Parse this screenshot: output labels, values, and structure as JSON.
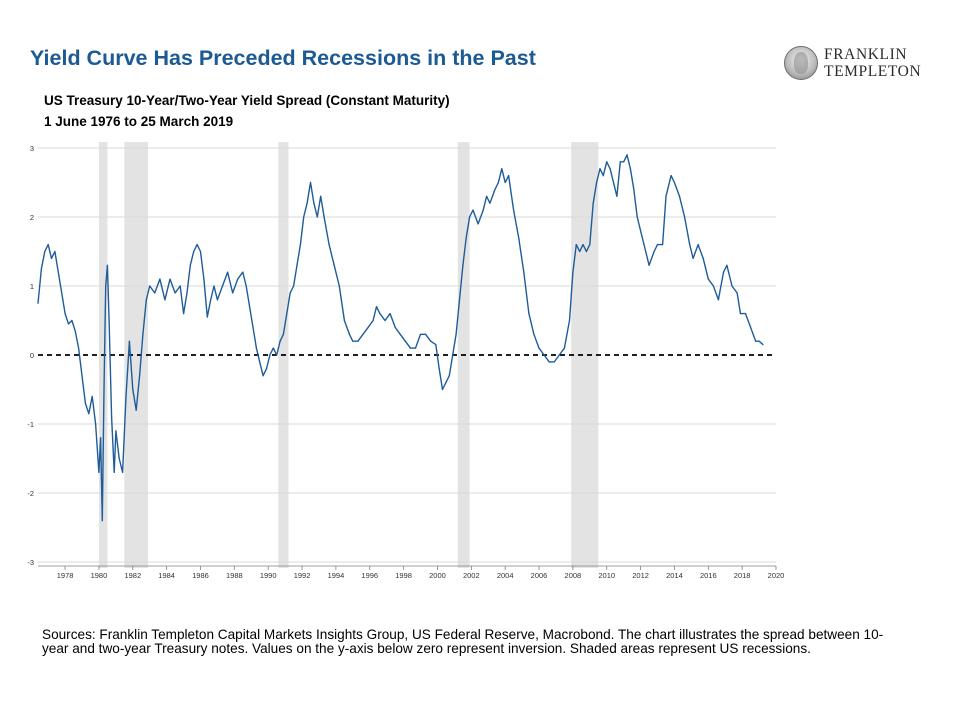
{
  "slide": {
    "title": "Yield Curve Has Preceded Recessions in the Past",
    "logo_line1": "FRANKLIN",
    "logo_line2": "TEMPLETON",
    "footnote": "Sources: Franklin Templeton Capital Markets Insights Group, US Federal Reserve, Macrobond. The chart illustrates the spread between 10-year and two-year Treasury notes. Values on the y-axis below zero represent inversion. Shaded areas represent US recessions."
  },
  "colors": {
    "title": "#1b5a93",
    "series_line": "#1f5c99",
    "recession_shading": "#e3e3e3",
    "gridline": "#d9d9d9",
    "zero_line": "#000000"
  },
  "chart_data": {
    "type": "line",
    "title": "US Treasury 10-Year/Two-Year Yield Spread (Constant Maturity)",
    "subtitle": "1 June 1976 to 25 March 2019",
    "xlabel": "",
    "ylabel": "",
    "x_range": [
      1976.4,
      2020.0
    ],
    "ylim": [
      -3,
      3
    ],
    "x_ticks": [
      1978,
      1980,
      1982,
      1984,
      1986,
      1988,
      1990,
      1992,
      1994,
      1996,
      1998,
      2000,
      2002,
      2004,
      2006,
      2008,
      2010,
      2012,
      2014,
      2016,
      2018,
      2020
    ],
    "y_ticks": [
      -3,
      -2,
      -1,
      0,
      1,
      2,
      3
    ],
    "grid": "horizontal",
    "zero_line": "dashed",
    "legend": "none",
    "recessions": [
      [
        1980.0,
        1980.5
      ],
      [
        1981.5,
        1982.9
      ],
      [
        1990.6,
        1991.2
      ],
      [
        2001.2,
        2001.9
      ],
      [
        2007.9,
        2009.5
      ]
    ],
    "series": [
      {
        "points": [
          [
            1976.4,
            0.75
          ],
          [
            1976.6,
            1.25
          ],
          [
            1976.8,
            1.5
          ],
          [
            1977.0,
            1.6
          ],
          [
            1977.2,
            1.4
          ],
          [
            1977.4,
            1.5
          ],
          [
            1977.6,
            1.2
          ],
          [
            1977.8,
            0.9
          ],
          [
            1978.0,
            0.6
          ],
          [
            1978.2,
            0.45
          ],
          [
            1978.4,
            0.5
          ],
          [
            1978.6,
            0.35
          ],
          [
            1978.8,
            0.1
          ],
          [
            1979.0,
            -0.3
          ],
          [
            1979.2,
            -0.7
          ],
          [
            1979.4,
            -0.85
          ],
          [
            1979.6,
            -0.6
          ],
          [
            1979.8,
            -1.0
          ],
          [
            1980.0,
            -1.7
          ],
          [
            1980.1,
            -1.2
          ],
          [
            1980.2,
            -2.4
          ],
          [
            1980.3,
            -0.5
          ],
          [
            1980.4,
            1.0
          ],
          [
            1980.5,
            1.3
          ],
          [
            1980.6,
            0.5
          ],
          [
            1980.75,
            -0.9
          ],
          [
            1980.9,
            -1.7
          ],
          [
            1981.0,
            -1.1
          ],
          [
            1981.2,
            -1.5
          ],
          [
            1981.4,
            -1.7
          ],
          [
            1981.6,
            -0.6
          ],
          [
            1981.8,
            0.2
          ],
          [
            1982.0,
            -0.5
          ],
          [
            1982.2,
            -0.8
          ],
          [
            1982.4,
            -0.3
          ],
          [
            1982.6,
            0.3
          ],
          [
            1982.8,
            0.8
          ],
          [
            1983.0,
            1.0
          ],
          [
            1983.3,
            0.9
          ],
          [
            1983.6,
            1.1
          ],
          [
            1983.9,
            0.8
          ],
          [
            1984.2,
            1.1
          ],
          [
            1984.5,
            0.9
          ],
          [
            1984.8,
            1.0
          ],
          [
            1985.0,
            0.6
          ],
          [
            1985.2,
            0.9
          ],
          [
            1985.4,
            1.3
          ],
          [
            1985.6,
            1.5
          ],
          [
            1985.8,
            1.6
          ],
          [
            1986.0,
            1.5
          ],
          [
            1986.2,
            1.1
          ],
          [
            1986.4,
            0.55
          ],
          [
            1986.6,
            0.8
          ],
          [
            1986.8,
            1.0
          ],
          [
            1987.0,
            0.8
          ],
          [
            1987.3,
            1.0
          ],
          [
            1987.6,
            1.2
          ],
          [
            1987.9,
            0.9
          ],
          [
            1988.2,
            1.1
          ],
          [
            1988.5,
            1.2
          ],
          [
            1988.7,
            1.0
          ],
          [
            1988.9,
            0.7
          ],
          [
            1989.1,
            0.4
          ],
          [
            1989.3,
            0.1
          ],
          [
            1989.5,
            -0.1
          ],
          [
            1989.7,
            -0.3
          ],
          [
            1989.9,
            -0.2
          ],
          [
            1990.1,
            0.0
          ],
          [
            1990.3,
            0.1
          ],
          [
            1990.5,
            0.0
          ],
          [
            1990.7,
            0.2
          ],
          [
            1990.9,
            0.3
          ],
          [
            1991.1,
            0.6
          ],
          [
            1991.3,
            0.9
          ],
          [
            1991.5,
            1.0
          ],
          [
            1991.7,
            1.3
          ],
          [
            1991.9,
            1.6
          ],
          [
            1992.1,
            2.0
          ],
          [
            1992.3,
            2.2
          ],
          [
            1992.5,
            2.5
          ],
          [
            1992.7,
            2.2
          ],
          [
            1992.9,
            2.0
          ],
          [
            1993.1,
            2.3
          ],
          [
            1993.3,
            2.0
          ],
          [
            1993.6,
            1.6
          ],
          [
            1993.9,
            1.3
          ],
          [
            1994.2,
            1.0
          ],
          [
            1994.5,
            0.5
          ],
          [
            1994.8,
            0.3
          ],
          [
            1995.0,
            0.2
          ],
          [
            1995.3,
            0.2
          ],
          [
            1995.6,
            0.3
          ],
          [
            1995.9,
            0.4
          ],
          [
            1996.2,
            0.5
          ],
          [
            1996.4,
            0.7
          ],
          [
            1996.6,
            0.6
          ],
          [
            1996.9,
            0.5
          ],
          [
            1997.2,
            0.6
          ],
          [
            1997.5,
            0.4
          ],
          [
            1997.8,
            0.3
          ],
          [
            1998.1,
            0.2
          ],
          [
            1998.4,
            0.1
          ],
          [
            1998.7,
            0.1
          ],
          [
            1999.0,
            0.3
          ],
          [
            1999.3,
            0.3
          ],
          [
            1999.6,
            0.2
          ],
          [
            1999.9,
            0.15
          ],
          [
            2000.1,
            -0.2
          ],
          [
            2000.3,
            -0.5
          ],
          [
            2000.5,
            -0.4
          ],
          [
            2000.7,
            -0.3
          ],
          [
            2000.9,
            0.0
          ],
          [
            2001.1,
            0.3
          ],
          [
            2001.3,
            0.8
          ],
          [
            2001.5,
            1.3
          ],
          [
            2001.7,
            1.7
          ],
          [
            2001.9,
            2.0
          ],
          [
            2002.1,
            2.1
          ],
          [
            2002.4,
            1.9
          ],
          [
            2002.7,
            2.1
          ],
          [
            2002.9,
            2.3
          ],
          [
            2003.1,
            2.2
          ],
          [
            2003.4,
            2.4
          ],
          [
            2003.6,
            2.5
          ],
          [
            2003.8,
            2.7
          ],
          [
            2004.0,
            2.5
          ],
          [
            2004.2,
            2.6
          ],
          [
            2004.5,
            2.1
          ],
          [
            2004.8,
            1.7
          ],
          [
            2005.1,
            1.2
          ],
          [
            2005.4,
            0.6
          ],
          [
            2005.7,
            0.3
          ],
          [
            2006.0,
            0.1
          ],
          [
            2006.3,
            0.0
          ],
          [
            2006.6,
            -0.1
          ],
          [
            2006.9,
            -0.1
          ],
          [
            2007.2,
            0.0
          ],
          [
            2007.5,
            0.1
          ],
          [
            2007.8,
            0.5
          ],
          [
            2008.0,
            1.2
          ],
          [
            2008.2,
            1.6
          ],
          [
            2008.4,
            1.5
          ],
          [
            2008.6,
            1.6
          ],
          [
            2008.8,
            1.5
          ],
          [
            2009.0,
            1.6
          ],
          [
            2009.2,
            2.2
          ],
          [
            2009.4,
            2.5
          ],
          [
            2009.6,
            2.7
          ],
          [
            2009.8,
            2.6
          ],
          [
            2010.0,
            2.8
          ],
          [
            2010.2,
            2.7
          ],
          [
            2010.4,
            2.5
          ],
          [
            2010.6,
            2.3
          ],
          [
            2010.8,
            2.8
          ],
          [
            2011.0,
            2.8
          ],
          [
            2011.2,
            2.9
          ],
          [
            2011.4,
            2.7
          ],
          [
            2011.6,
            2.4
          ],
          [
            2011.8,
            2.0
          ],
          [
            2012.0,
            1.8
          ],
          [
            2012.3,
            1.5
          ],
          [
            2012.5,
            1.3
          ],
          [
            2012.8,
            1.5
          ],
          [
            2013.0,
            1.6
          ],
          [
            2013.3,
            1.6
          ],
          [
            2013.5,
            2.3
          ],
          [
            2013.8,
            2.6
          ],
          [
            2014.0,
            2.5
          ],
          [
            2014.3,
            2.3
          ],
          [
            2014.6,
            2.0
          ],
          [
            2014.9,
            1.6
          ],
          [
            2015.1,
            1.4
          ],
          [
            2015.4,
            1.6
          ],
          [
            2015.7,
            1.4
          ],
          [
            2016.0,
            1.1
          ],
          [
            2016.3,
            1.0
          ],
          [
            2016.6,
            0.8
          ],
          [
            2016.9,
            1.2
          ],
          [
            2017.1,
            1.3
          ],
          [
            2017.4,
            1.0
          ],
          [
            2017.7,
            0.9
          ],
          [
            2017.9,
            0.6
          ],
          [
            2018.2,
            0.6
          ],
          [
            2018.5,
            0.4
          ],
          [
            2018.8,
            0.2
          ],
          [
            2019.0,
            0.2
          ],
          [
            2019.23,
            0.15
          ]
        ]
      }
    ]
  }
}
